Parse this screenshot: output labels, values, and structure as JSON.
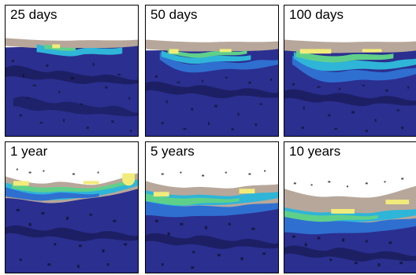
{
  "panels": [
    {
      "label": "25 days"
    },
    {
      "label": "50 days"
    },
    {
      "label": "100 days"
    },
    {
      "label": "1 year"
    },
    {
      "label": "5 years"
    },
    {
      "label": "10 years"
    }
  ],
  "colors": {
    "background": "#ffffff",
    "deep": "#2b2f8f",
    "deep_dark": "#1a1c5a",
    "pores": "#0b0b16",
    "blue": "#2f6fd0",
    "cyan": "#2fb5d8",
    "green": "#5fd08a",
    "yellow": "#f1ec7a",
    "tan": "#b7a79a",
    "tan_light": "#ddd3cb"
  }
}
